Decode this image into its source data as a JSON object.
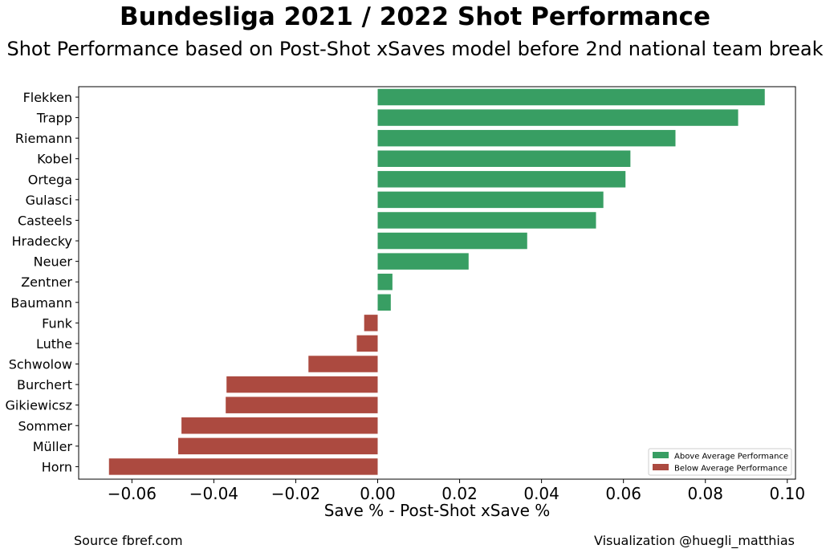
{
  "chart_data": {
    "type": "bar",
    "orientation": "horizontal",
    "title": "Bundesliga 2021 / 2022 Shot Performance",
    "subtitle": "Shot Performance based on Post-Shot xSaves model before 2nd national team break",
    "xlabel": "Save % - Post-Shot xSave %",
    "ylabel": "",
    "xlim": [
      -0.073,
      0.102
    ],
    "xticks": [
      -0.06,
      -0.04,
      -0.02,
      0.0,
      0.02,
      0.04,
      0.06,
      0.08,
      0.1
    ],
    "xtick_labels": [
      "−0.06",
      "−0.04",
      "−0.02",
      "0.00",
      "0.02",
      "0.04",
      "0.06",
      "0.08",
      "0.10"
    ],
    "grid": false,
    "legend_position": "bottom-right",
    "categories": [
      "Flekken",
      "Trapp",
      "Riemann",
      "Kobel",
      "Ortega",
      "Gulasci",
      "Casteels",
      "Hradecky",
      "Neuer",
      "Zentner",
      "Baumann",
      "Funk",
      "Luthe",
      "Schwolow",
      "Burchert",
      "Gikiewicsz",
      "Sommer",
      "Müller",
      "Horn"
    ],
    "values": [
      0.0945,
      0.088,
      0.0727,
      0.0617,
      0.0605,
      0.0551,
      0.0533,
      0.0365,
      0.0222,
      0.0036,
      0.0032,
      -0.0033,
      -0.0051,
      -0.0169,
      -0.0369,
      -0.0371,
      -0.0479,
      -0.0487,
      -0.0656
    ],
    "series": [
      {
        "name": "Above Average Performance",
        "color": "#389e63"
      },
      {
        "name": "Below Average Performance",
        "color": "#ac4a40"
      }
    ]
  },
  "footer": {
    "source": "Source fbref.com",
    "credit": "Visualization @huegli_matthias"
  }
}
